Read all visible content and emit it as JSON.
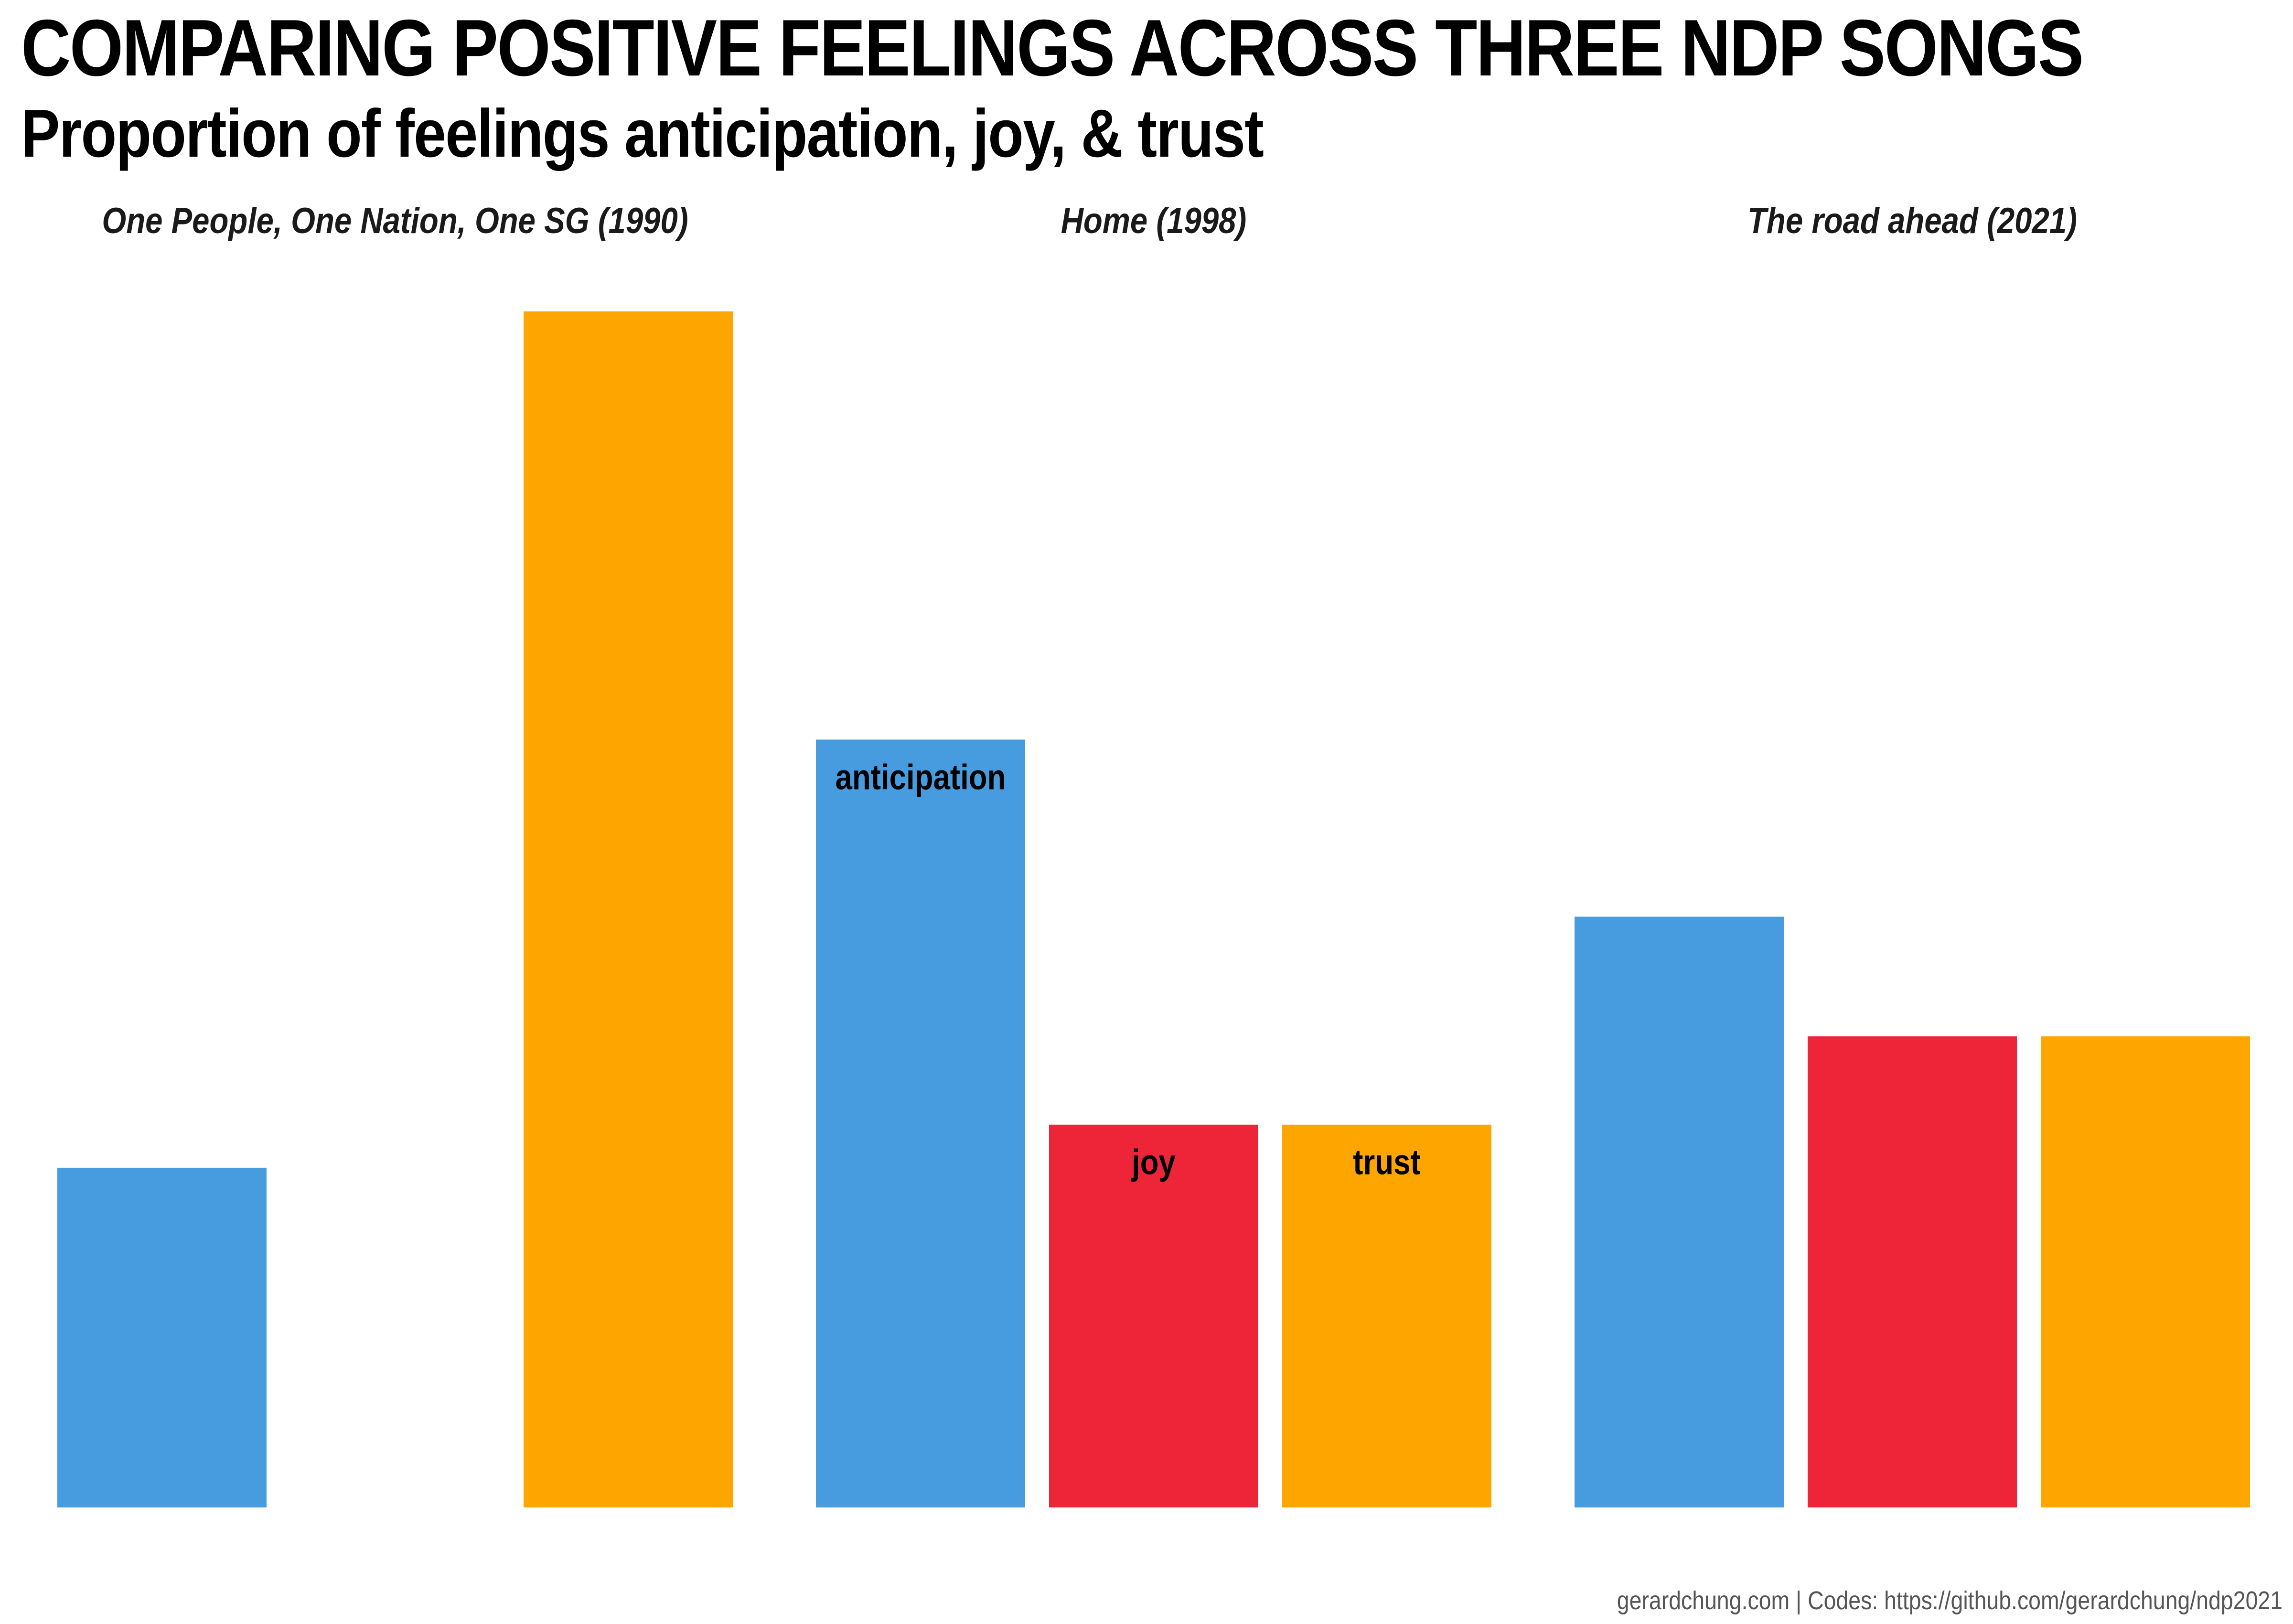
{
  "title": "COMPARING POSITIVE FEELINGS ACROSS THREE NDP SONGS",
  "subtitle": "Proportion of feelings anticipation, joy, & trust",
  "caption": "gerardchung.com | Codes: https://github.com/gerardchung/ndp2021",
  "colors": {
    "anticipation": "#479CDF",
    "joy": "#EE2538",
    "trust": "#FFA500"
  },
  "chart_data": {
    "type": "bar",
    "ylim": [
      0,
      0.5
    ],
    "grid": false,
    "series_order": [
      "anticipation",
      "joy",
      "trust"
    ],
    "panels": [
      {
        "title": "One People, One Nation, One SG (1990)",
        "values": {
          "anticipation": 0.142,
          "joy": 0,
          "trust": 0.5
        },
        "show_labels": false
      },
      {
        "title": "Home (1998)",
        "values": {
          "anticipation": 0.321,
          "joy": 0.16,
          "trust": 0.16
        },
        "show_labels": true
      },
      {
        "title": "The road ahead (2021)",
        "values": {
          "anticipation": 0.247,
          "joy": 0.197,
          "trust": 0.197
        },
        "show_labels": false
      }
    ]
  }
}
